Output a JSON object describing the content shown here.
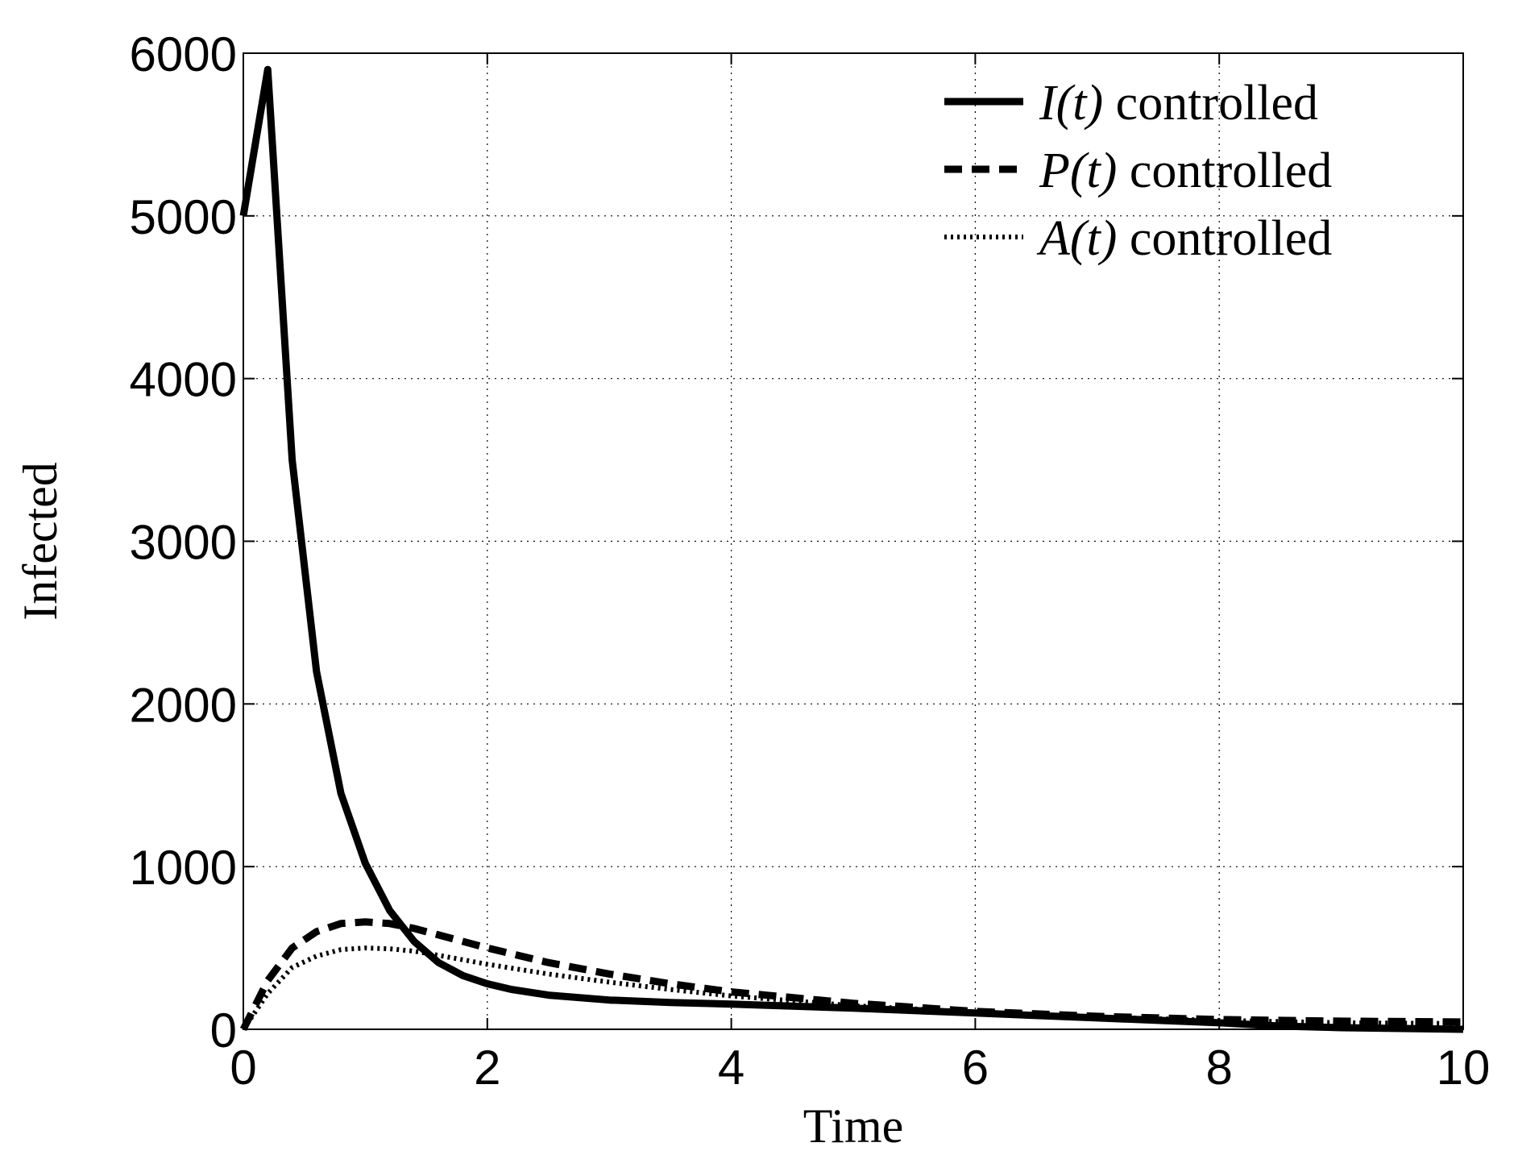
{
  "chart_data": {
    "type": "line",
    "xlabel": "Time",
    "ylabel": "Infected",
    "xlim": [
      0,
      10
    ],
    "ylim": [
      0,
      6000
    ],
    "xticks": [
      "0",
      "2",
      "4",
      "6",
      "8",
      "10"
    ],
    "yticks": [
      "0",
      "1000",
      "2000",
      "3000",
      "4000",
      "5000",
      "6000"
    ],
    "grid": true,
    "legend_position": "top-right",
    "series": [
      {
        "name": "I(t) controlled",
        "legend_var": "I(t)",
        "legend_suffix": " controlled",
        "style": "solid",
        "color": "#000000",
        "x": [
          0,
          0.2,
          0.4,
          0.6,
          0.8,
          1.0,
          1.2,
          1.4,
          1.6,
          1.8,
          2.0,
          2.2,
          2.5,
          3.0,
          3.5,
          4.0,
          5.0,
          6.0,
          7.0,
          8.0,
          8.5,
          9.0,
          9.5,
          10.0
        ],
        "y": [
          5000,
          5900,
          3500,
          2200,
          1450,
          1020,
          730,
          540,
          410,
          330,
          280,
          245,
          210,
          180,
          165,
          155,
          130,
          100,
          70,
          40,
          20,
          10,
          5,
          0
        ]
      },
      {
        "name": "P(t) controlled",
        "legend_var": "P(t)",
        "legend_suffix": " controlled",
        "style": "dashed",
        "color": "#000000",
        "x": [
          0,
          0.2,
          0.4,
          0.6,
          0.8,
          1.0,
          1.2,
          1.4,
          1.6,
          2.0,
          2.5,
          3.0,
          3.5,
          4.0,
          5.0,
          6.0,
          7.0,
          8.0,
          9.0,
          10.0
        ],
        "y": [
          0,
          300,
          500,
          600,
          650,
          660,
          650,
          620,
          580,
          500,
          410,
          340,
          280,
          230,
          160,
          110,
          80,
          60,
          50,
          45
        ]
      },
      {
        "name": "A(t) controlled",
        "legend_var": "A(t)",
        "legend_suffix": " controlled",
        "style": "dotted",
        "color": "#000000",
        "x": [
          0,
          0.2,
          0.4,
          0.6,
          0.8,
          1.0,
          1.2,
          1.4,
          1.6,
          2.0,
          2.5,
          3.0,
          3.5,
          4.0,
          5.0,
          6.0,
          7.0,
          8.0,
          9.0,
          10.0
        ],
        "y": [
          0,
          220,
          380,
          450,
          490,
          500,
          495,
          480,
          455,
          400,
          340,
          290,
          245,
          205,
          145,
          105,
          75,
          55,
          40,
          35
        ]
      }
    ]
  }
}
